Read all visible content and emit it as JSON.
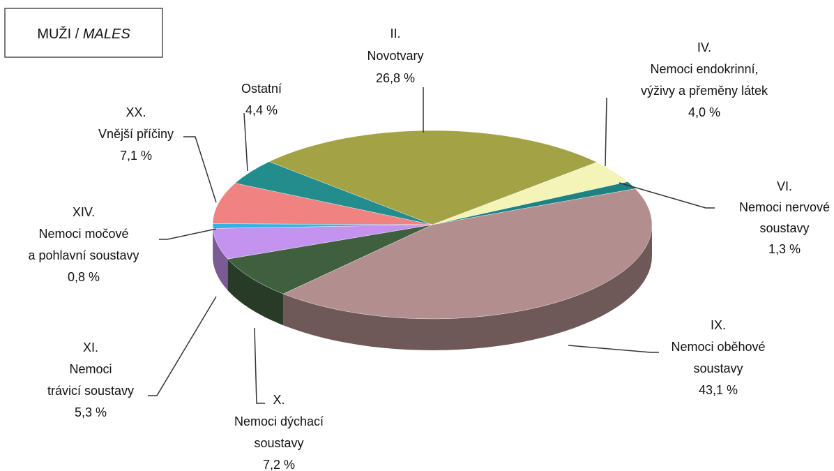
{
  "chart_data": {
    "type": "pie",
    "title": [
      "MUŽI / ",
      "MALES"
    ],
    "categories": [
      [
        "II.",
        "Novotvary"
      ],
      [
        "IV.",
        "Nemoci endokrinní,",
        "výživy a přeměny látek"
      ],
      [
        "VI.",
        "Nemoci nervové",
        "soustavy"
      ],
      [
        "IX.",
        "Nemoci oběhové",
        "soustavy"
      ],
      [
        "X.",
        "Nemoci dýchací",
        "soustavy"
      ],
      [
        "XI.",
        "Nemoci",
        "trávicí soustavy"
      ],
      [
        "XIV.",
        "Nemoci močové",
        "a pohlavní soustavy"
      ],
      [
        "XX.",
        "Vnější příčiny"
      ],
      [
        "Ostatní"
      ]
    ],
    "values": [
      26.8,
      4.0,
      1.3,
      43.1,
      7.2,
      5.3,
      0.8,
      7.1,
      4.4
    ],
    "value_labels": [
      "26,8 %",
      "4,0 %",
      "1,3 %",
      "43,1 %",
      "7,2 %",
      "5,3 %",
      "0,8 %",
      "7,1 %",
      "4,4 %"
    ],
    "colors": [
      "#a3a345",
      "#f4f4b8",
      "#1e8282",
      "#b38e8e",
      "#3f5f3f",
      "#c493f0",
      "#33b3e3",
      "#f08282",
      "#238c8c"
    ]
  }
}
